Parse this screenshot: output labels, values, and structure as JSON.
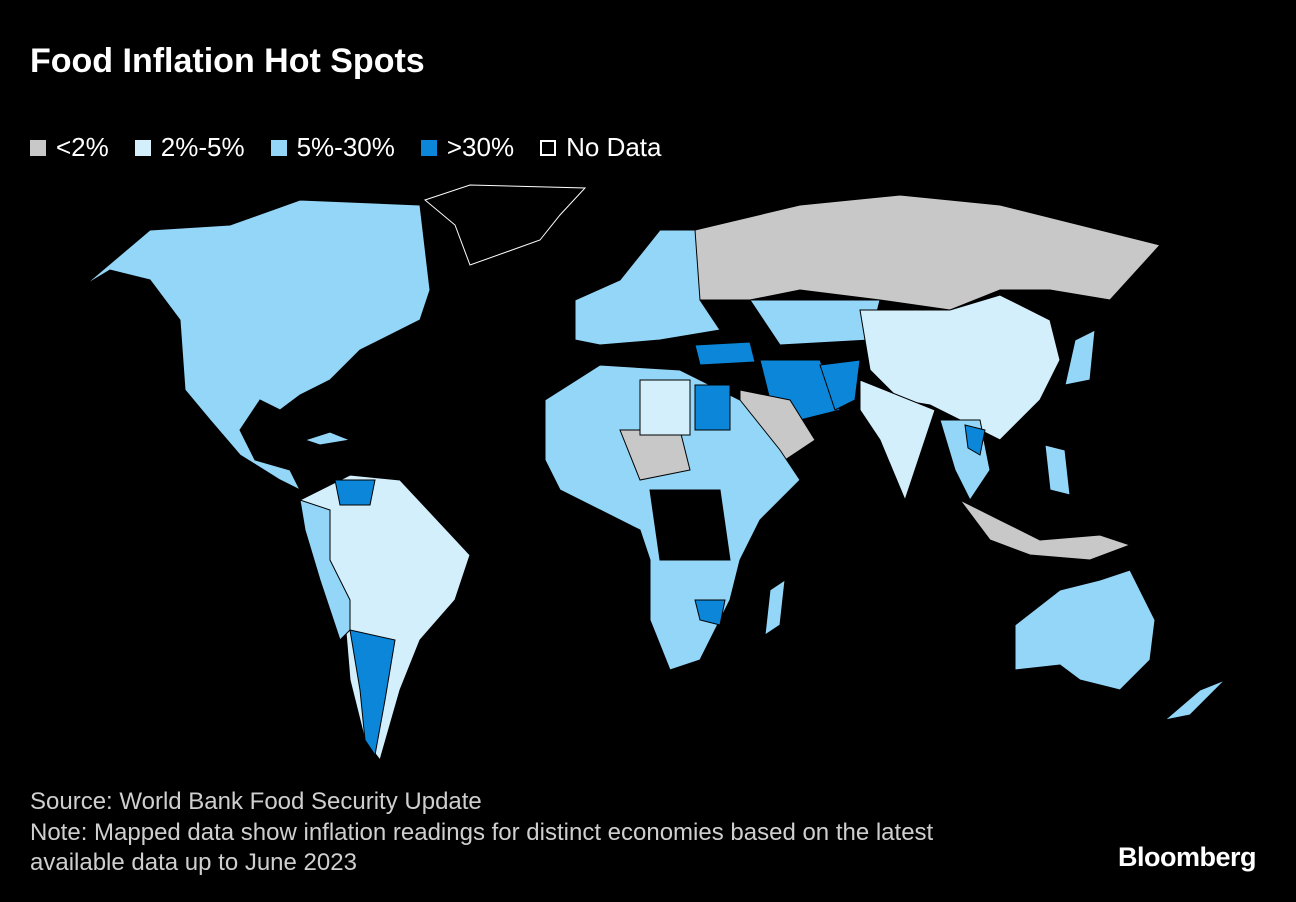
{
  "title": "Food Inflation Hot Spots",
  "legend": {
    "items": [
      {
        "label": "<2%",
        "color": "#c8c8c8"
      },
      {
        "label": "2%-5%",
        "color": "#d3effc"
      },
      {
        "label": "5%-30%",
        "color": "#94d6f8"
      },
      {
        "label": ">30%",
        "color": "#0b86d8"
      },
      {
        "label": "No Data",
        "color": "#000000"
      }
    ]
  },
  "source": "Source: World Bank Food Security Update",
  "note": "Note: Mapped data show inflation readings for distinct economies based on the latest available data up to June 2023",
  "brand": "Bloomberg"
}
